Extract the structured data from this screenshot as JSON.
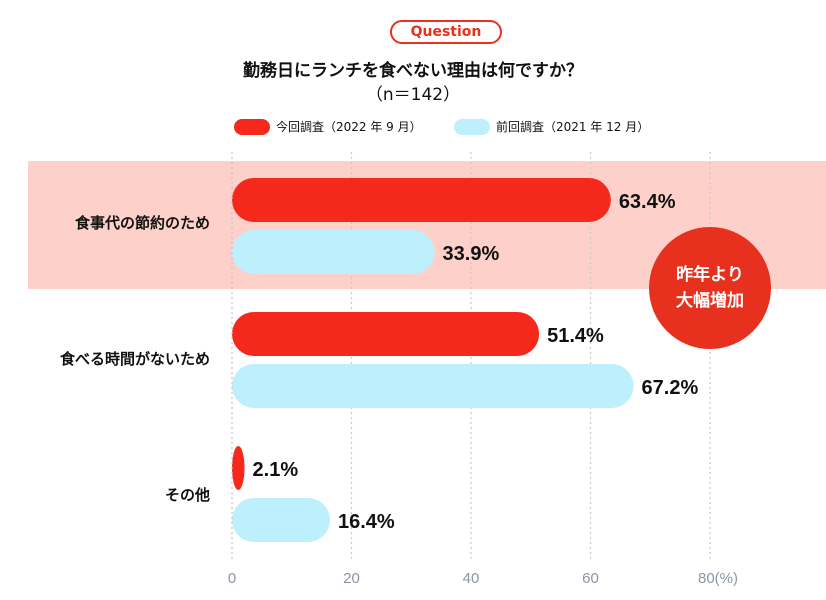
{
  "header": {
    "badge": "Question",
    "title": "勤務日にランチを食べない理由は何ですか？",
    "subtitle": "（n＝142）"
  },
  "colors": {
    "current": "#f4291b",
    "previous": "#bdeffc",
    "highlight": "#fdd1c9",
    "accent": "#e8301e"
  },
  "callout": {
    "line1": "昨年より",
    "line2": "大幅増加"
  },
  "chart_data": {
    "type": "bar",
    "orientation": "horizontal",
    "title": "勤務日にランチを食べない理由は何ですか？",
    "categories": [
      "食事代の節約のため",
      "食べる時間がないため",
      "その他"
    ],
    "series": [
      {
        "name": "今回調査（2022 年 9 月）",
        "values": [
          63.4,
          51.4,
          2.1
        ]
      },
      {
        "name": "前回調査（2021 年 12 月）",
        "values": [
          33.9,
          67.2,
          16.4
        ]
      }
    ],
    "value_labels": [
      [
        "63.4%",
        "51.4%",
        "2.1%"
      ],
      [
        "33.9%",
        "67.2%",
        "16.4%"
      ]
    ],
    "xlim": [
      0,
      80
    ],
    "xticks": [
      "0",
      "20",
      "40",
      "60",
      "80(%)"
    ],
    "xtick_values": [
      0,
      20,
      40,
      60,
      80
    ],
    "grid": true,
    "legend": "top-center"
  }
}
